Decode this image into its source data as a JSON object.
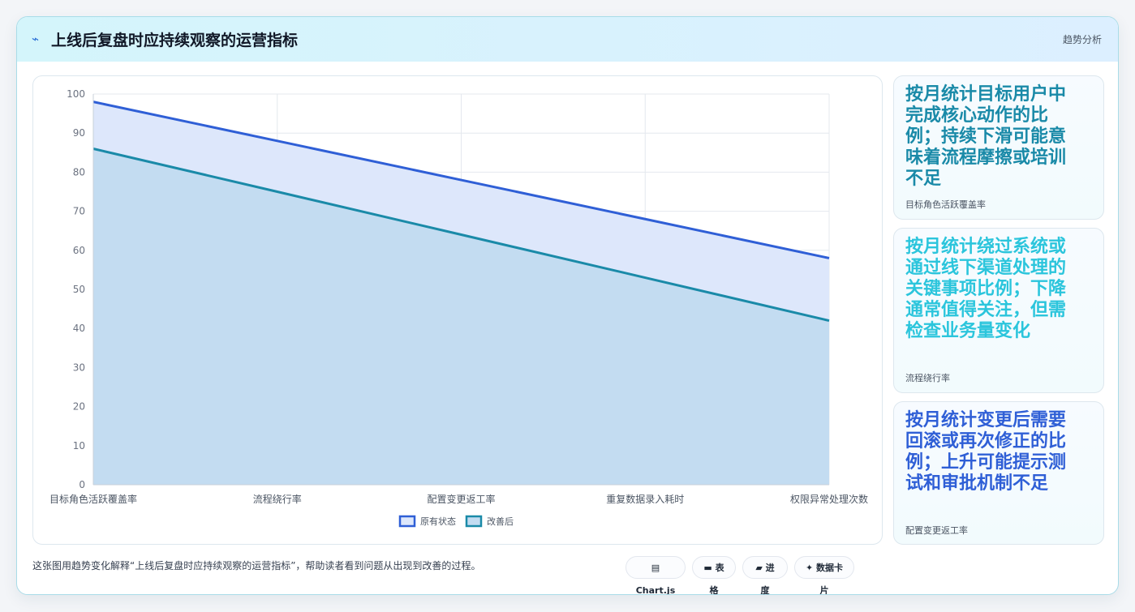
{
  "header": {
    "icon": "lightning-icon",
    "title": "上线后复盘时应持续观察的运营指标",
    "right_label": "趋势分析"
  },
  "chart_data": {
    "type": "area",
    "categories": [
      "目标角色活跃覆盖率",
      "流程绕行率",
      "配置变更返工率",
      "重复数据录入耗时",
      "权限异常处理次数"
    ],
    "series": [
      {
        "name": "原有状态",
        "values": [
          98,
          88,
          78,
          68,
          58
        ],
        "color": "#2f5fd6",
        "fill": "#dde7fb"
      },
      {
        "name": "改善后",
        "values": [
          86,
          75,
          64,
          53,
          42
        ],
        "color": "#1a8aa8",
        "fill": "#c3dcf1"
      }
    ],
    "ylim": [
      0,
      100
    ],
    "yticks": [
      0,
      10,
      20,
      30,
      40,
      50,
      60,
      70,
      80,
      90,
      100
    ],
    "grid": true,
    "legend": "bottom"
  },
  "cards": [
    {
      "text": "按月统计目标用户中完成核心动作的比例；持续下滑可能意味着流程摩擦或培训不足",
      "label": "目标角色活跃覆盖率",
      "color": "#1a8aa8"
    },
    {
      "text": "按月统计绕过系统或通过线下渠道处理的关键事项比例；下降通常值得关注，但需检查业务量变化",
      "label": "流程绕行率",
      "color": "#2bc5dc"
    },
    {
      "text": "按月统计变更后需要回滚或再次修正的比例；上升可能提示测试和审批机制不足",
      "label": "配置变更返工率",
      "color": "#2f5fd6"
    }
  ],
  "footer": {
    "note": "这张图用趋势变化解释“上线后复盘时应持续观察的运营指标”，帮助读者看到问题从出现到改善的过程。",
    "chips": [
      {
        "icon": "chart-icon",
        "label": "Chart.js"
      },
      {
        "icon": "table-icon",
        "label": "表格"
      },
      {
        "icon": "progress-icon",
        "label": "进度"
      },
      {
        "icon": "sparkle-icon",
        "label": "数据卡片"
      }
    ]
  }
}
